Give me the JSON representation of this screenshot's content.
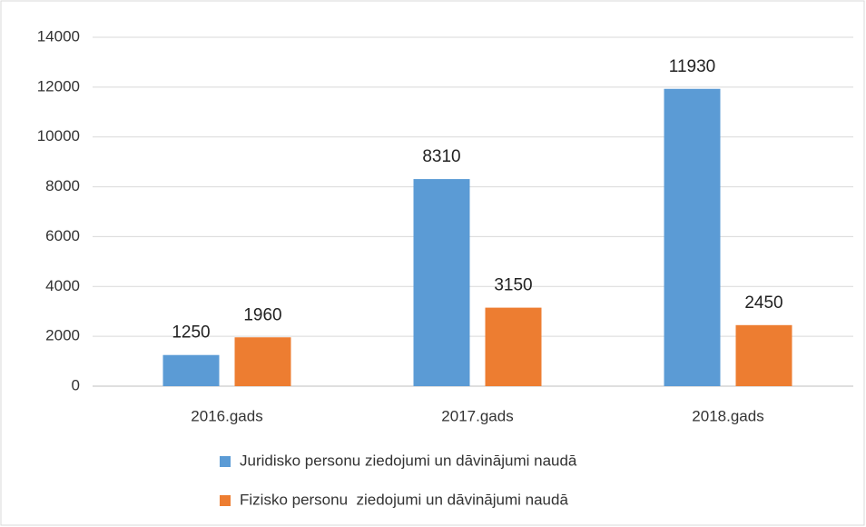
{
  "chart_data": {
    "type": "bar",
    "categories": [
      "2016.gads",
      "2017.gads",
      "2018.gads"
    ],
    "series": [
      {
        "name": "Juridisko personu ziedojumi un dāvinājumi naudā",
        "color": "#5b9bd5",
        "values": [
          1250,
          8310,
          11930
        ]
      },
      {
        "name": "Fizisko personu  ziedojumi un dāvinājumi naudā",
        "color": "#ed7d31",
        "values": [
          1960,
          3150,
          2450
        ]
      }
    ],
    "ylim": [
      0,
      14000
    ],
    "yticks": [
      0,
      2000,
      4000,
      6000,
      8000,
      10000,
      12000,
      14000
    ],
    "grid": true,
    "legend": "bottom"
  }
}
